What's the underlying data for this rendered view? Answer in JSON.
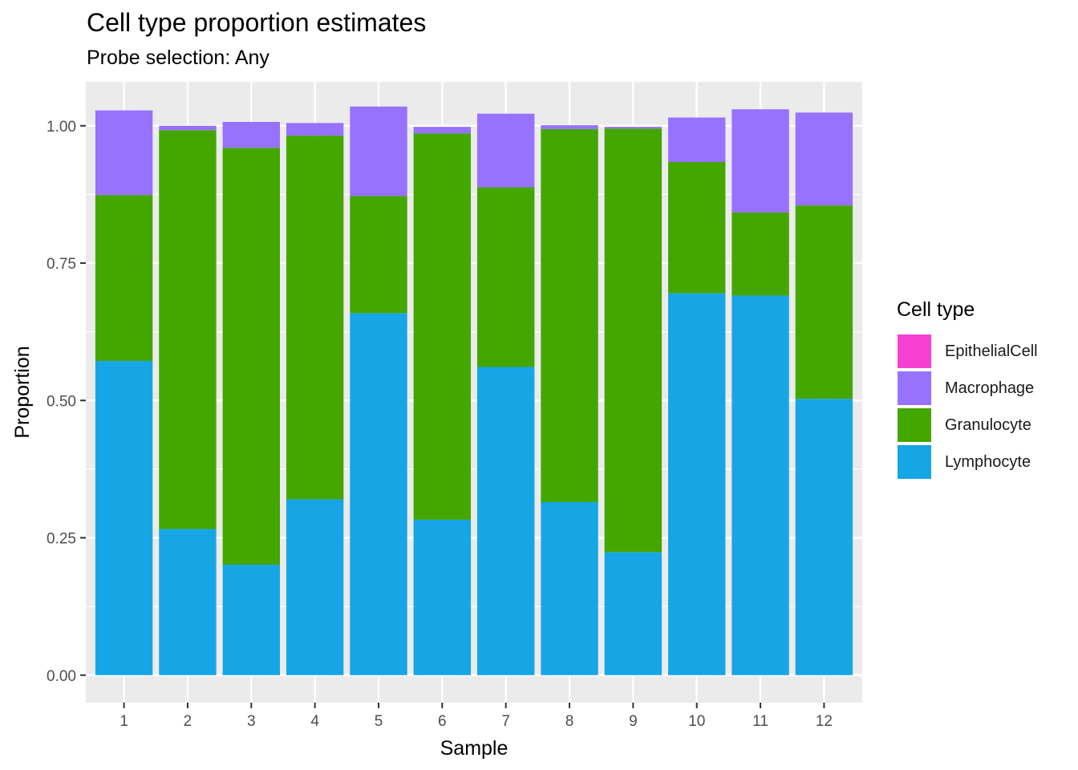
{
  "chart_data": {
    "type": "bar",
    "stacked": true,
    "title": "Cell type proportion estimates",
    "subtitle": "Probe selection: Any",
    "xlabel": "Sample",
    "ylabel": "Proportion",
    "ylim": [
      -0.05,
      1.08
    ],
    "yticks": [
      "0.00",
      "0.25",
      "0.50",
      "0.75",
      "1.00"
    ],
    "ytick_values": [
      0,
      0.25,
      0.5,
      0.75,
      1.0
    ],
    "categories": [
      "1",
      "2",
      "3",
      "4",
      "5",
      "6",
      "7",
      "8",
      "9",
      "10",
      "11",
      "12"
    ],
    "grid": true,
    "legend_position": "right",
    "legend_title": "Cell type",
    "series": [
      {
        "name": "Lymphocyte",
        "color": "#17A6E5",
        "values": [
          0.572,
          0.266,
          0.201,
          0.32,
          0.659,
          0.283,
          0.561,
          0.315,
          0.224,
          0.695,
          0.691,
          0.503
        ]
      },
      {
        "name": "Granulocyte",
        "color": "#44A600",
        "values": [
          0.302,
          0.726,
          0.759,
          0.662,
          0.213,
          0.703,
          0.327,
          0.679,
          0.771,
          0.239,
          0.151,
          0.352
        ]
      },
      {
        "name": "Macrophage",
        "color": "#9772FF",
        "values": [
          0.154,
          0.008,
          0.047,
          0.023,
          0.163,
          0.012,
          0.134,
          0.007,
          0.003,
          0.081,
          0.188,
          0.169
        ]
      },
      {
        "name": "EpithelialCell",
        "color": "#F640D2",
        "values": [
          0,
          0,
          0,
          0,
          0,
          0,
          0,
          0,
          0,
          0,
          0,
          0
        ]
      }
    ],
    "legend_order": [
      "EpithelialCell",
      "Macrophage",
      "Granulocyte",
      "Lymphocyte"
    ]
  }
}
